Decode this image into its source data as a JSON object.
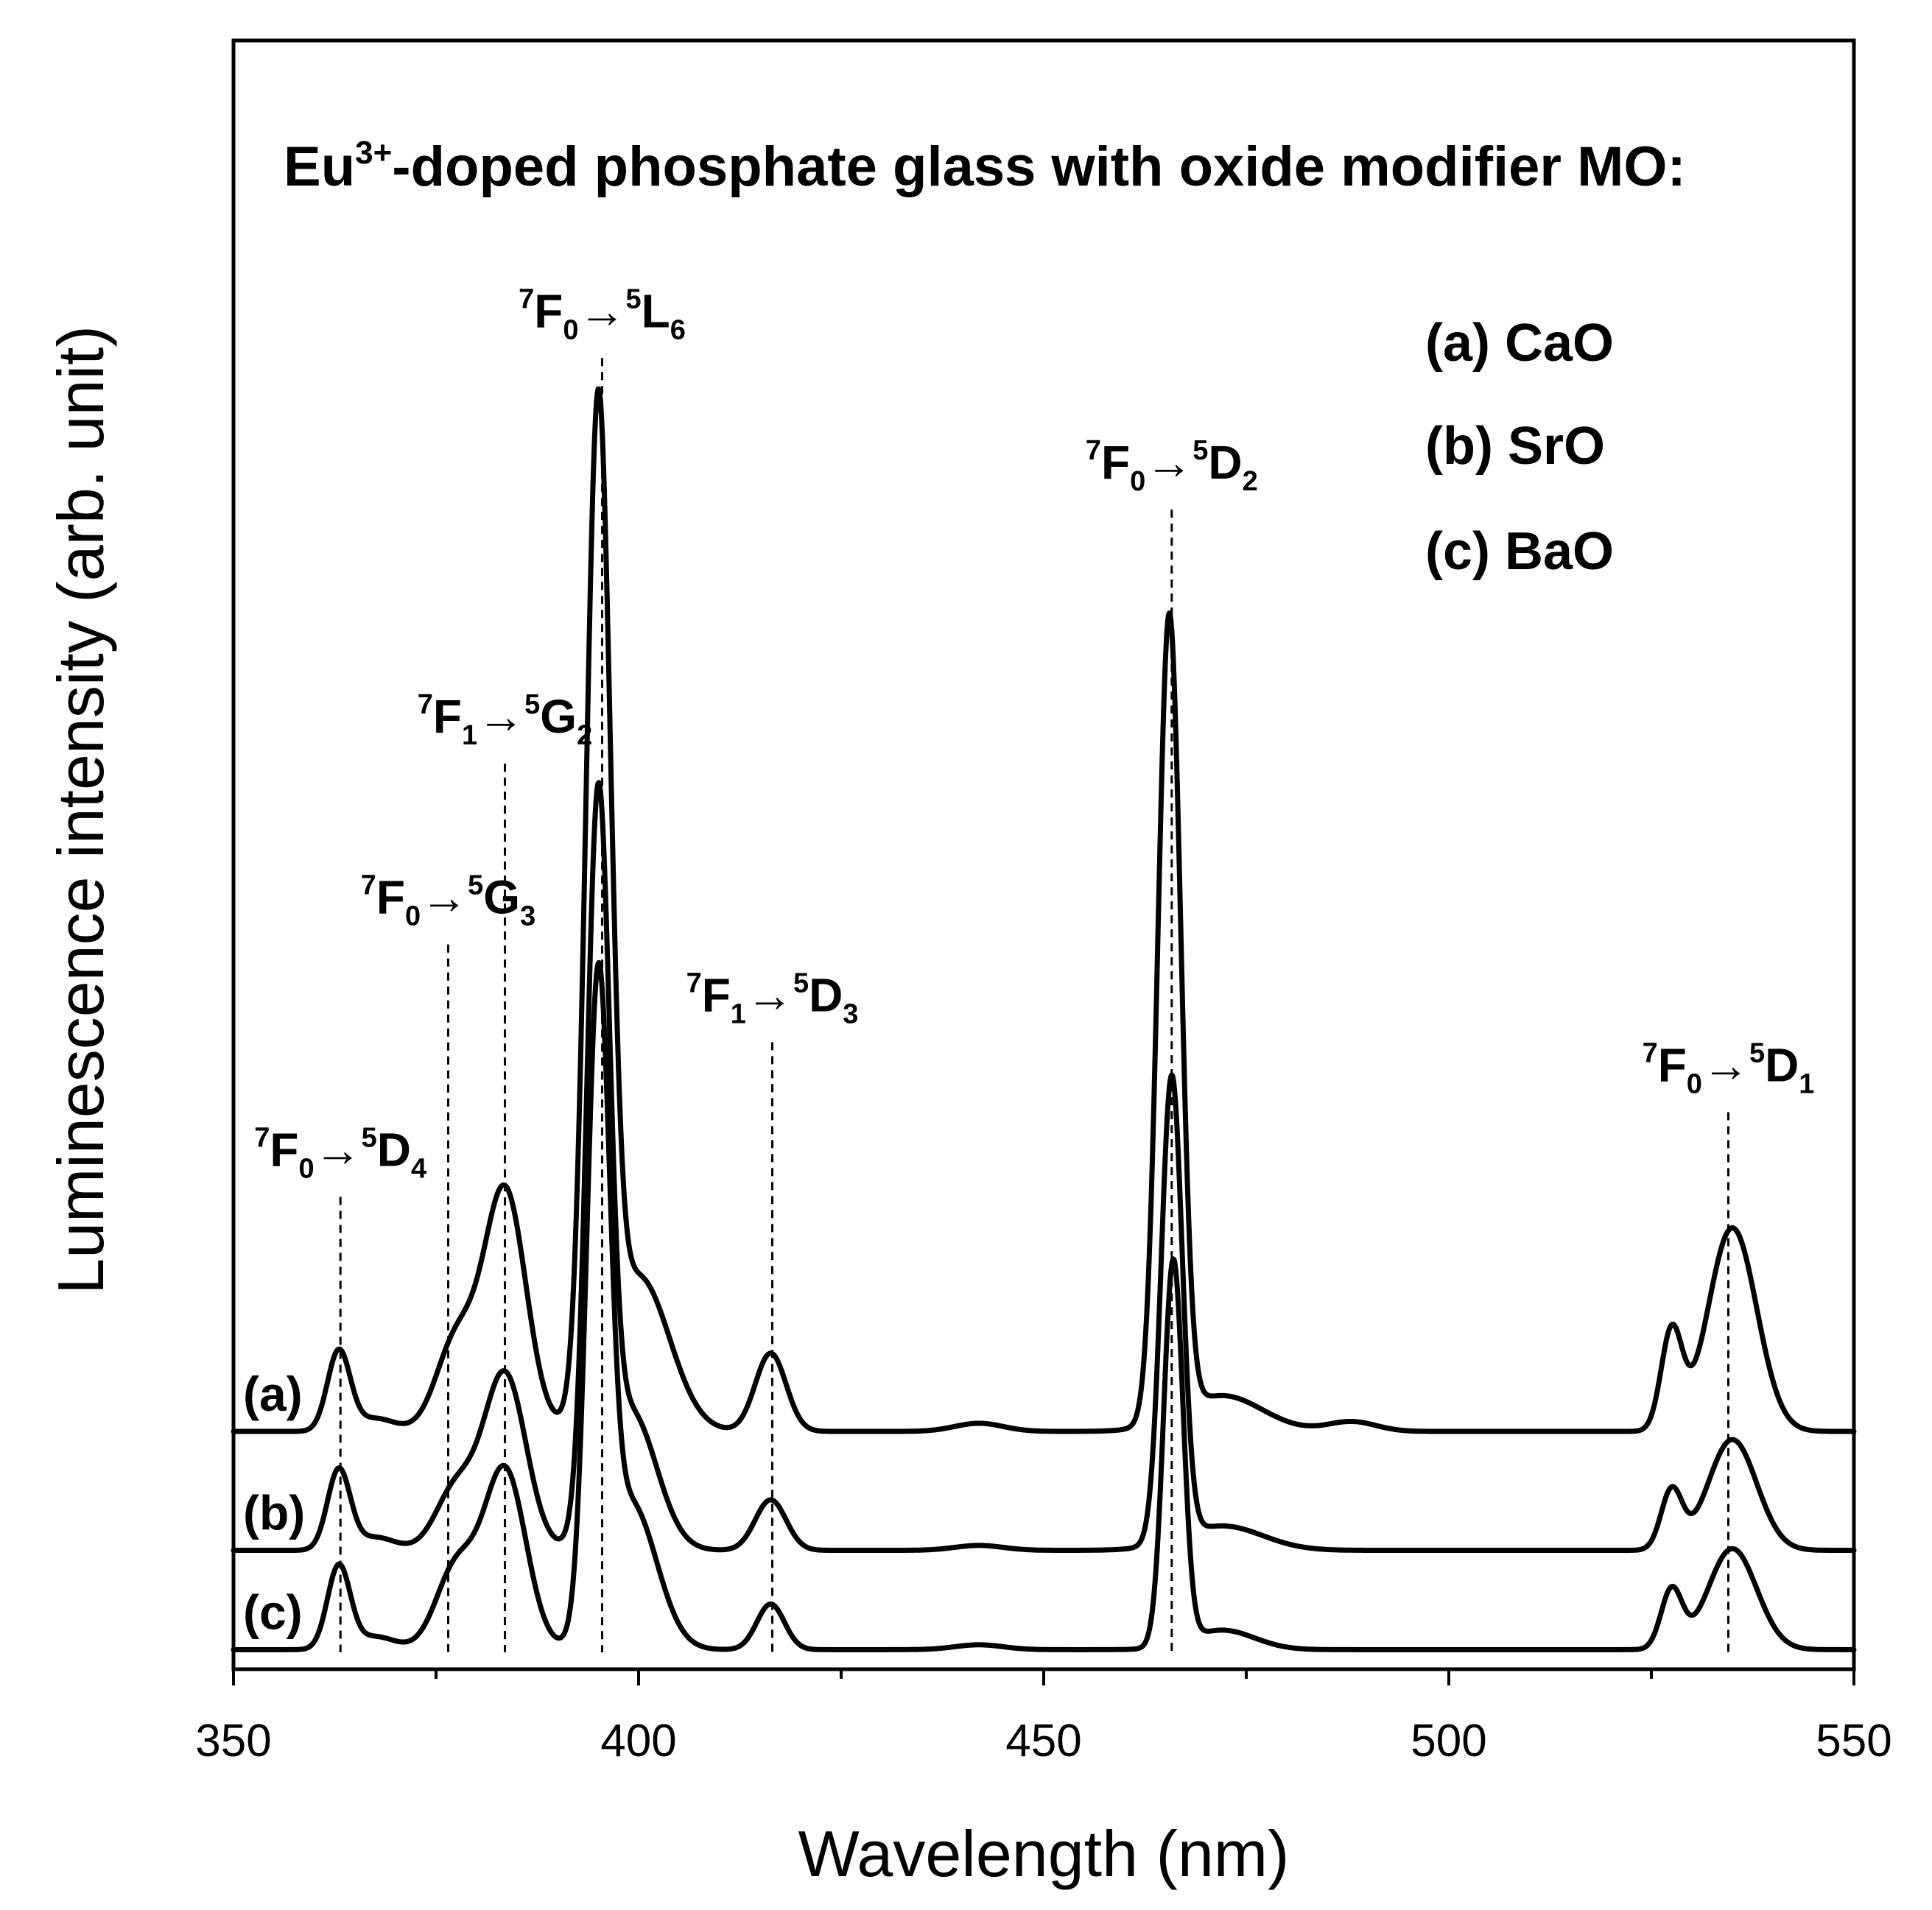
{
  "chart_data": {
    "type": "line",
    "title_main": "Eu",
    "title_sup": "3+",
    "title_rest": "-doped phosphate glass with oxide modifier MO:",
    "xlabel": "Wavelength (nm)",
    "ylabel": "Luminescence intensity (arb. unit)",
    "xlim": [
      350,
      550
    ],
    "ylim": [
      0,
      100
    ],
    "xticks": [
      350,
      400,
      450,
      500,
      550
    ],
    "xtick_labels": [
      "350",
      "400",
      "450",
      "500",
      "550"
    ],
    "minor_xticks": [
      375,
      425,
      475,
      525
    ],
    "legend": [
      "(a) CaO",
      "(b) SrO",
      "(c) BaO"
    ],
    "series": [
      {
        "name": "(a) CaO",
        "label": "(a)",
        "baseline": 14.6,
        "peaks": [
          {
            "x": 363,
            "height": 4.9,
            "width": 1.4
          },
          {
            "x": 367.5,
            "height": 0.8,
            "width": 2.5
          },
          {
            "x": 377.5,
            "height": 5.5,
            "width": 2.5
          },
          {
            "x": 383.5,
            "height": 14.8,
            "width": 2.6
          },
          {
            "x": 395,
            "height": 60.0,
            "width": 1.5
          },
          {
            "x": 400,
            "height": 9.5,
            "width": 3.8
          },
          {
            "x": 416.3,
            "height": 4.8,
            "width": 1.9
          },
          {
            "x": 442,
            "height": 0.5,
            "width": 3.0
          },
          {
            "x": 465.5,
            "height": 49.3,
            "width": 1.4
          },
          {
            "x": 472,
            "height": 2.2,
            "width": 5.0
          },
          {
            "x": 488,
            "height": 0.6,
            "width": 3.0
          },
          {
            "x": 527.5,
            "height": 6.0,
            "width": 1.3
          },
          {
            "x": 535,
            "height": 12.5,
            "width": 3.0
          }
        ]
      },
      {
        "name": "(b) SrO",
        "label": "(b)",
        "baseline": 7.3,
        "peaks": [
          {
            "x": 363,
            "height": 4.9,
            "width": 1.4
          },
          {
            "x": 367.5,
            "height": 0.8,
            "width": 2.5
          },
          {
            "x": 377.5,
            "height": 3.8,
            "width": 2.5
          },
          {
            "x": 383.5,
            "height": 10.8,
            "width": 2.6
          },
          {
            "x": 395,
            "height": 43.2,
            "width": 1.4
          },
          {
            "x": 399,
            "height": 8.5,
            "width": 3.2
          },
          {
            "x": 416.3,
            "height": 3.1,
            "width": 1.9
          },
          {
            "x": 442,
            "height": 0.3,
            "width": 3.0
          },
          {
            "x": 465.8,
            "height": 28.5,
            "width": 1.3
          },
          {
            "x": 472,
            "height": 1.5,
            "width": 5.0
          },
          {
            "x": 527.5,
            "height": 3.6,
            "width": 1.3
          },
          {
            "x": 535,
            "height": 6.8,
            "width": 3.0
          }
        ]
      },
      {
        "name": "(c) BaO",
        "label": "(c)",
        "baseline": 1.2,
        "peaks": [
          {
            "x": 363,
            "height": 5.1,
            "width": 1.4
          },
          {
            "x": 367.5,
            "height": 0.8,
            "width": 2.5
          },
          {
            "x": 377.5,
            "height": 5.0,
            "width": 2.5
          },
          {
            "x": 383.5,
            "height": 11.0,
            "width": 2.6
          },
          {
            "x": 395,
            "height": 38.0,
            "width": 1.4
          },
          {
            "x": 399,
            "height": 9.0,
            "width": 3.2
          },
          {
            "x": 416.3,
            "height": 2.8,
            "width": 1.7
          },
          {
            "x": 442,
            "height": 0.3,
            "width": 3.0
          },
          {
            "x": 466,
            "height": 23.6,
            "width": 1.2
          },
          {
            "x": 472,
            "height": 1.2,
            "width": 4.0
          },
          {
            "x": 527.5,
            "height": 3.6,
            "width": 1.3
          },
          {
            "x": 535,
            "height": 6.2,
            "width": 3.0
          }
        ]
      }
    ],
    "transitions": [
      {
        "x": 363.2,
        "top": 29.0,
        "from": "7",
        "fromSym": "F",
        "fromSub": "0",
        "to": "5",
        "toSym": "D",
        "toSub": "4"
      },
      {
        "x": 376.5,
        "top": 44.5,
        "from": "7",
        "fromSym": "F",
        "fromSub": "0",
        "to": "5",
        "toSym": "G",
        "toSub": "3"
      },
      {
        "x": 383.5,
        "top": 55.6,
        "from": "7",
        "fromSym": "F",
        "fromSub": "1",
        "to": "5",
        "toSym": "G",
        "toSub": "2"
      },
      {
        "x": 395.5,
        "top": 80.5,
        "from": "7",
        "fromSym": "F",
        "fromSub": "0",
        "to": "5",
        "toSym": "L",
        "toSub": "6"
      },
      {
        "x": 416.5,
        "top": 38.5,
        "from": "7",
        "fromSym": "F",
        "fromSub": "1",
        "to": "5",
        "toSym": "D",
        "toSub": "3"
      },
      {
        "x": 465.8,
        "top": 71.2,
        "from": "7",
        "fromSym": "F",
        "fromSub": "0",
        "to": "5",
        "toSym": "D",
        "toSub": "2"
      },
      {
        "x": 534.5,
        "top": 34.2,
        "from": "7",
        "fromSym": "F",
        "fromSub": "0",
        "to": "5",
        "toSym": "D",
        "toSub": "1"
      }
    ]
  }
}
